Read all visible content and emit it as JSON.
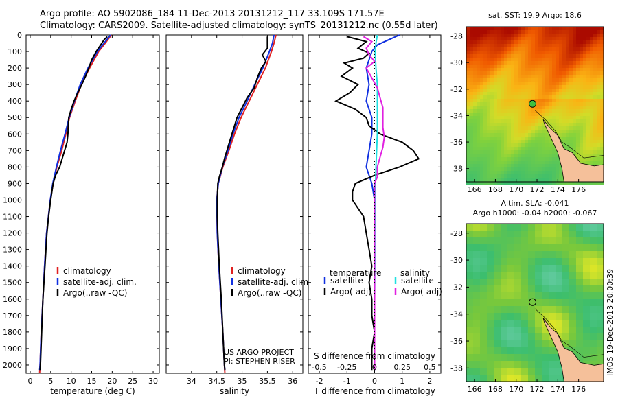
{
  "header": {
    "line1": "Argo profile: AO 5902086_184 11-Dec-2013 20131212_117 33.109S 171.57E",
    "line2": "Climatology: CARS2009. Satellite-adjusted climatology: synTS_20131212.nc (0.55d later)"
  },
  "colors": {
    "climatology": "#e02020",
    "satellite": "#1030e0",
    "argo": "#000000",
    "sat_salinity": "#20e0e0",
    "argo_salinity": "#e020e0"
  },
  "chart_data": [
    {
      "type": "line",
      "panel": "temperature",
      "xlabel": "temperature (deg C)",
      "ylabel": "",
      "xlim": [
        -1,
        31.5
      ],
      "ylim": [
        2050,
        0
      ],
      "xticks": [
        0,
        5,
        10,
        15,
        20,
        25,
        30
      ],
      "yticks": [
        0,
        100,
        200,
        300,
        400,
        500,
        600,
        700,
        800,
        900,
        1000,
        1100,
        1200,
        1300,
        1400,
        1500,
        1600,
        1700,
        1800,
        1900,
        2000
      ],
      "legend": [
        "climatology",
        "satellite-adj. clim.",
        "Argo(..raw -QC)"
      ],
      "series": [
        {
          "name": "climatology",
          "depth": [
            0,
            50,
            100,
            200,
            300,
            400,
            500,
            600,
            700,
            800,
            900,
            1000,
            1200,
            1400,
            1600,
            1800,
            2000,
            2050
          ],
          "values": [
            19.8,
            18.3,
            16.7,
            14.5,
            12.5,
            11.0,
            9.6,
            8.7,
            7.7,
            6.5,
            5.6,
            4.9,
            4.0,
            3.5,
            3.1,
            2.7,
            2.4,
            2.3
          ]
        },
        {
          "name": "satellite-adj. clim.",
          "depth": [
            0,
            50,
            100,
            200,
            300,
            400,
            500,
            600,
            700,
            800,
            900,
            1000,
            1200,
            1400,
            1600,
            1800,
            2000,
            2030
          ],
          "values": [
            19.6,
            18.0,
            16.4,
            14.1,
            12.2,
            10.8,
            9.5,
            8.5,
            7.4,
            6.4,
            5.5,
            4.9,
            4.0,
            3.5,
            3.1,
            2.7,
            2.4,
            2.3
          ]
        },
        {
          "name": "Argo(..raw -QC)",
          "depth": [
            10,
            30,
            60,
            100,
            150,
            200,
            250,
            300,
            350,
            400,
            450,
            500,
            550,
            600,
            650,
            700,
            750,
            800,
            850,
            900,
            1000,
            1100,
            1200,
            1400,
            1600,
            1800,
            2000,
            2030
          ],
          "values": [
            18.8,
            18.0,
            17.2,
            16.1,
            15.0,
            14.3,
            13.5,
            12.6,
            11.6,
            10.7,
            10.0,
            9.4,
            9.3,
            9.2,
            9.0,
            8.4,
            7.8,
            7.2,
            6.2,
            5.6,
            5.0,
            4.5,
            4.1,
            3.6,
            3.1,
            2.8,
            2.5,
            2.4
          ]
        }
      ]
    },
    {
      "type": "line",
      "panel": "salinity",
      "xlabel": "salinity",
      "ylabel": "",
      "xlim": [
        33.5,
        36.2
      ],
      "ylim": [
        2050,
        0
      ],
      "xticks": [
        34,
        34.5,
        35,
        35.5,
        36
      ],
      "legend": [
        "climatology",
        "satellite-adj. clim.",
        "Argo(..raw -QC)"
      ],
      "annotations": [
        "US ARGO PROJECT",
        "PI: STEPHEN RISER"
      ],
      "series": [
        {
          "name": "climatology",
          "depth": [
            0,
            50,
            100,
            200,
            300,
            400,
            500,
            600,
            700,
            800,
            900,
            1000,
            1200,
            1400,
            1600,
            1800,
            2000,
            2050
          ],
          "values": [
            35.67,
            35.63,
            35.58,
            35.46,
            35.3,
            35.14,
            34.98,
            34.85,
            34.74,
            34.62,
            34.53,
            34.5,
            34.51,
            34.54,
            34.58,
            34.62,
            34.65,
            34.66
          ]
        },
        {
          "name": "satellite-adj. clim.",
          "depth": [
            0,
            50,
            100,
            200,
            300,
            400,
            500,
            600,
            700,
            800,
            900,
            1000,
            1200,
            1400,
            1600,
            1800,
            2000,
            2030
          ],
          "values": [
            35.63,
            35.6,
            35.54,
            35.41,
            35.25,
            35.1,
            34.94,
            34.82,
            34.72,
            34.61,
            34.53,
            34.5,
            34.51,
            34.54,
            34.58,
            34.62,
            34.65,
            34.66
          ]
        },
        {
          "name": "Argo(..raw -QC)",
          "depth": [
            10,
            40,
            80,
            120,
            160,
            200,
            260,
            320,
            380,
            440,
            500,
            560,
            620,
            680,
            740,
            800,
            860,
            900,
            1000,
            1100,
            1200,
            1400,
            1600,
            1800,
            2000,
            2030
          ],
          "values": [
            35.5,
            35.5,
            35.5,
            35.4,
            35.47,
            35.38,
            35.3,
            35.24,
            35.1,
            35.0,
            34.9,
            34.84,
            34.78,
            34.72,
            34.66,
            34.61,
            34.55,
            34.52,
            34.51,
            34.51,
            34.52,
            34.55,
            34.59,
            34.62,
            34.65,
            34.66
          ]
        }
      ]
    },
    {
      "type": "line",
      "panel": "difference",
      "xlabel": "T difference from climatology",
      "xlabel_top": "S difference from climatology",
      "ylabel": "",
      "xlim": [
        -2.4,
        2.4
      ],
      "ylim": [
        2050,
        0
      ],
      "xticks": [
        -2,
        -1,
        0,
        1,
        2
      ],
      "sticks_labels": [
        "-0.5",
        "-0.25",
        "0",
        "0.25",
        "0.5"
      ],
      "sticks_values": [
        -2,
        -1,
        0,
        1,
        2
      ],
      "legend_left_title": "temperature",
      "legend_right_title": "salinity",
      "legend": [
        "satellite",
        "Argo(-adj)",
        "satellite",
        "Argo(-adj)"
      ],
      "series": [
        {
          "name": "satellite",
          "quantity": "temperature",
          "depth": [
            0,
            30,
            60,
            100,
            150,
            200,
            300,
            400,
            500,
            600,
            700,
            800,
            900,
            1000,
            1200,
            1400,
            1600,
            1800,
            2000,
            2030
          ],
          "values": [
            0.9,
            0.5,
            0.1,
            -0.1,
            -0.2,
            -0.3,
            -0.2,
            -0.3,
            -0.1,
            -0.1,
            -0.2,
            -0.3,
            -0.1,
            0.0,
            0.0,
            0.0,
            0.0,
            0.0,
            0.0,
            0.0
          ]
        },
        {
          "name": "Argo(-adj)",
          "quantity": "temperature",
          "depth": [
            10,
            40,
            80,
            110,
            140,
            170,
            200,
            250,
            300,
            350,
            400,
            450,
            500,
            550,
            600,
            650,
            700,
            750,
            800,
            850,
            900,
            950,
            1000,
            1100,
            1200,
            1300,
            1400,
            1500,
            1600,
            1700,
            1800,
            1900,
            2000,
            2030
          ],
          "values": [
            -1.0,
            -0.3,
            -0.6,
            -0.2,
            -0.4,
            -1.1,
            -0.8,
            -1.2,
            -0.6,
            -0.9,
            -1.4,
            -0.7,
            -0.3,
            -0.2,
            0.2,
            1.0,
            1.4,
            1.6,
            0.9,
            0.0,
            -0.7,
            -0.8,
            -0.8,
            -0.4,
            -0.3,
            -0.2,
            -0.1,
            -0.2,
            -0.1,
            -0.1,
            0.0,
            -0.1,
            -0.1,
            -0.1
          ]
        },
        {
          "name": "satellite",
          "quantity": "salinity",
          "depth": [
            0,
            50,
            100,
            200,
            300,
            400,
            500,
            600,
            800,
            1000,
            1200,
            1400,
            1600,
            1800,
            2000,
            2030
          ],
          "values": [
            0.1,
            0.05,
            0.02,
            0.05,
            0.1,
            0.1,
            0.1,
            0.1,
            0.05,
            0.02,
            0.01,
            0.01,
            0.0,
            0.0,
            0.0,
            0.0
          ]
        },
        {
          "name": "Argo(-adj)",
          "quantity": "salinity",
          "depth": [
            10,
            40,
            80,
            120,
            160,
            200,
            260,
            320,
            380,
            440,
            500,
            560,
            620,
            680,
            740,
            800,
            860,
            900,
            1000,
            1200,
            1400,
            1600,
            1800,
            2000,
            2030
          ],
          "values": [
            -0.4,
            -0.1,
            -0.3,
            -0.2,
            0.0,
            -0.3,
            -0.1,
            0.1,
            0.2,
            0.3,
            0.3,
            0.3,
            0.35,
            0.3,
            0.2,
            0.1,
            0.1,
            0.0,
            0.0,
            0.0,
            0.0,
            0.0,
            0.0,
            0.0,
            0.0
          ]
        }
      ]
    }
  ],
  "maps": [
    {
      "title": "sat. SST: 19.9 Argo: 18.6",
      "title2": "",
      "lat_ticks": [
        "-28",
        "-30",
        "-32",
        "-34",
        "-36",
        "-38"
      ],
      "lon_ticks": [
        "166",
        "168",
        "170",
        "172",
        "174",
        "176"
      ],
      "palette": "sst"
    },
    {
      "title": "Altim. SLA: -0.041",
      "title2": "Argo h1000: -0.04 h2000: -0.067",
      "lat_ticks": [
        "-28",
        "-30",
        "-32",
        "-34",
        "-36",
        "-38"
      ],
      "lon_ticks": [
        "166",
        "168",
        "170",
        "172",
        "174",
        "176"
      ],
      "palette": "sla"
    }
  ],
  "stamp": "IMOS 19-Dec-2013 20:00:39"
}
